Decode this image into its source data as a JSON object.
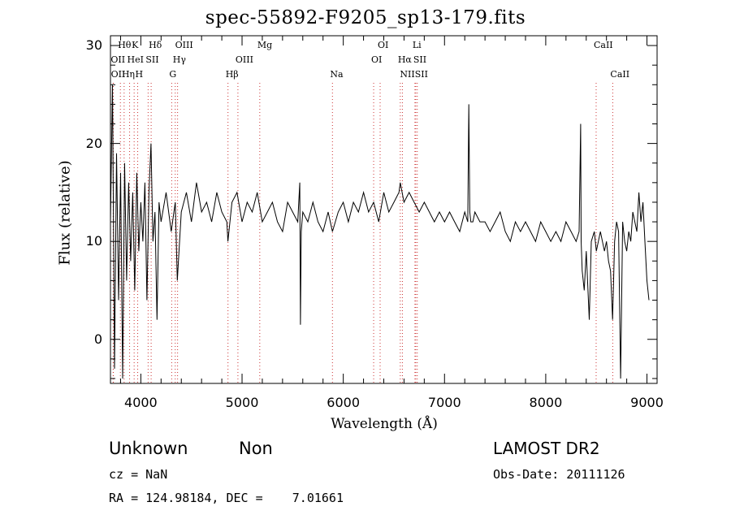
{
  "chart_data": {
    "type": "line",
    "title": "spec-55892-F9205_sp13-179.fits",
    "xlabel": "Wavelength (Å)",
    "ylabel": "Flux (relative)",
    "xlim": [
      3700,
      9100
    ],
    "ylim": [
      -4.5,
      31
    ],
    "xticks": [
      4000,
      5000,
      6000,
      7000,
      8000,
      9000
    ],
    "yticks": [
      0,
      10,
      20,
      30
    ],
    "grid": false,
    "line_color": "#000000",
    "marker_line_color": "#cc3333",
    "series": [
      {
        "x": [
          3700,
          3720,
          3740,
          3760,
          3780,
          3800,
          3820,
          3840,
          3860,
          3880,
          3900,
          3920,
          3940,
          3960,
          3980,
          4000,
          4020,
          4040,
          4060,
          4080,
          4100,
          4120,
          4140,
          4160,
          4180,
          4200,
          4250,
          4300,
          4340,
          4360,
          4400,
          4450,
          4500,
          4550,
          4600,
          4650,
          4700,
          4750,
          4800,
          4850,
          4860,
          4900,
          4950,
          5000,
          5050,
          5100,
          5150,
          5200,
          5250,
          5300,
          5350,
          5400,
          5450,
          5500,
          5550,
          5570,
          5577,
          5585,
          5600,
          5650,
          5700,
          5750,
          5800,
          5850,
          5893,
          5950,
          6000,
          6050,
          6100,
          6150,
          6200,
          6250,
          6300,
          6350,
          6400,
          6450,
          6500,
          6550,
          6563,
          6600,
          6650,
          6700,
          6750,
          6800,
          6850,
          6900,
          6950,
          7000,
          7050,
          7100,
          7150,
          7200,
          7230,
          7240,
          7250,
          7260,
          7280,
          7300,
          7350,
          7400,
          7450,
          7500,
          7550,
          7600,
          7650,
          7700,
          7750,
          7800,
          7850,
          7900,
          7950,
          8000,
          8050,
          8100,
          8150,
          8200,
          8250,
          8300,
          8330,
          8345,
          8350,
          8360,
          8380,
          8400,
          8430,
          8450,
          8480,
          8500,
          8520,
          8540,
          8560,
          8580,
          8600,
          8620,
          8640,
          8660,
          8680,
          8700,
          8720,
          8740,
          8760,
          8780,
          8800,
          8820,
          8840,
          8860,
          8880,
          8900,
          8920,
          8940,
          8960,
          8980,
          9000,
          9020
        ],
        "values": [
          12,
          26,
          -3,
          19,
          4,
          17,
          -4,
          18,
          6,
          16,
          8,
          15,
          5,
          17,
          9,
          14,
          10,
          16,
          4,
          15,
          20,
          10,
          13,
          2,
          14,
          12,
          15,
          11,
          14,
          6,
          13,
          15,
          12,
          16,
          13,
          14,
          12,
          15,
          13,
          12,
          10,
          14,
          15,
          12,
          14,
          13,
          15,
          12,
          13,
          14,
          12,
          11,
          14,
          13,
          12,
          16,
          1.5,
          11,
          13,
          12,
          14,
          12,
          11,
          13,
          11,
          13,
          14,
          12,
          14,
          13,
          15,
          13,
          14,
          12,
          15,
          13,
          14,
          15,
          16,
          14,
          15,
          14,
          13,
          14,
          13,
          12,
          13,
          12,
          13,
          12,
          11,
          13,
          12,
          24,
          13,
          12,
          12,
          13,
          12,
          12,
          11,
          12,
          13,
          11,
          10,
          12,
          11,
          12,
          11,
          10,
          12,
          11,
          10,
          11,
          10,
          12,
          11,
          10,
          11,
          22,
          10,
          7,
          5,
          9,
          2,
          10,
          11,
          9,
          10,
          11,
          10,
          9,
          10,
          8,
          7,
          2,
          10,
          12,
          11,
          -4,
          12,
          10,
          9,
          11,
          10,
          13,
          12,
          11,
          15,
          12,
          14,
          10,
          6,
          4
        ]
      }
    ],
    "line_markers": [
      {
        "name": "Hθ",
        "x": 3798,
        "row": 1
      },
      {
        "name": "OII",
        "x": 3727,
        "row": 2
      },
      {
        "name": "OII",
        "x": 3729,
        "row": 3
      },
      {
        "name": "Hη",
        "x": 3835,
        "row": 3
      },
      {
        "name": "K",
        "x": 3934,
        "row": 1
      },
      {
        "name": "HeI",
        "x": 3889,
        "row": 2
      },
      {
        "name": "SII",
        "x": 4072,
        "row": 2
      },
      {
        "name": "H",
        "x": 3969,
        "row": 3
      },
      {
        "name": "Hδ",
        "x": 4102,
        "row": 1
      },
      {
        "name": "OIII",
        "x": 4363,
        "row": 1
      },
      {
        "name": "Hγ",
        "x": 4340,
        "row": 2
      },
      {
        "name": "G",
        "x": 4305,
        "row": 3
      },
      {
        "name": "OIII",
        "x": 4959,
        "row": 2
      },
      {
        "name": "Hβ",
        "x": 4861,
        "row": 3
      },
      {
        "name": "Mg",
        "x": 5175,
        "row": 1
      },
      {
        "name": "Na",
        "x": 5893,
        "row": 3
      },
      {
        "name": "OI",
        "x": 6364,
        "row": 1
      },
      {
        "name": "OI",
        "x": 6300,
        "row": 2
      },
      {
        "name": "Li",
        "x": 6708,
        "row": 1
      },
      {
        "name": "Hα",
        "x": 6563,
        "row": 2
      },
      {
        "name": "SII",
        "x": 6716,
        "row": 2
      },
      {
        "name": "NII",
        "x": 6584,
        "row": 3
      },
      {
        "name": "SII",
        "x": 6731,
        "row": 3
      },
      {
        "name": "CaII",
        "x": 8498,
        "row": 1
      },
      {
        "name": "CaII",
        "x": 8662,
        "row": 3
      }
    ]
  },
  "info": {
    "class": "Unknown",
    "subclass": "Non",
    "survey": "LAMOST DR2",
    "cz": "cz = NaN",
    "obs_date": "Obs-Date: 20111126",
    "radec": "RA = 124.98184, DEC =    7.01661"
  }
}
